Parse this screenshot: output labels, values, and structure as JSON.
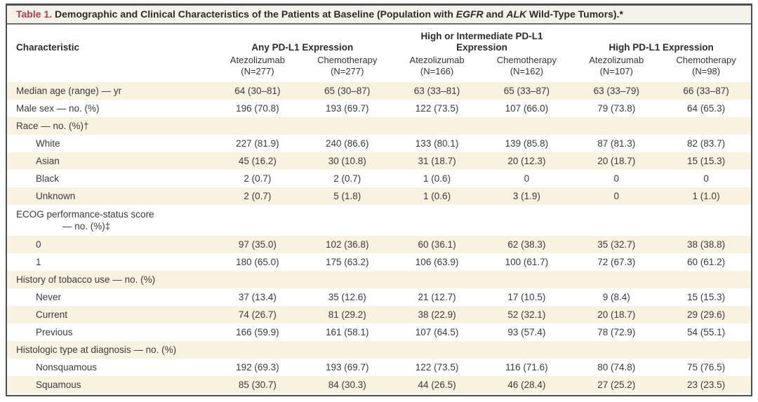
{
  "title": {
    "label": "Table 1.",
    "part1": " Demographic and Clinical Characteristics of the Patients at Baseline (Population with ",
    "gene1": "EGFR",
    "part2": " and ",
    "gene2": "ALK",
    "part3": " Wild-Type Tumors).*"
  },
  "header": {
    "characteristic": "Characteristic",
    "groups": [
      {
        "label": "Any PD-L1 Expression"
      },
      {
        "label": "High or Intermediate PD-L1 Expression"
      },
      {
        "label": "High PD-L1 Expression"
      }
    ],
    "arms": [
      {
        "drug": "Atezolizumab",
        "n": "(N=277)"
      },
      {
        "drug": "Chemotherapy",
        "n": "(N=277)"
      },
      {
        "drug": "Atezolizumab",
        "n": "(N=166)"
      },
      {
        "drug": "Chemotherapy",
        "n": "(N=162)"
      },
      {
        "drug": "Atezolizumab",
        "n": "(N=107)"
      },
      {
        "drug": "Chemotherapy",
        "n": "(N=98)"
      }
    ]
  },
  "rows": [
    {
      "label": "Median age (range) — yr",
      "values": [
        "64 (30–81)",
        "65 (30–87)",
        "63 (33–81)",
        "65 (33–87)",
        "63 (33–79)",
        "66 (33–87)"
      ]
    },
    {
      "label": "Male sex — no. (%)",
      "values": [
        "196 (70.8)",
        "193 (69.7)",
        "122 (73.5)",
        "107 (66.0)",
        "79 (73.8)",
        "64 (65.3)"
      ]
    },
    {
      "label": "Race — no. (%)†",
      "values": [
        "",
        "",
        "",
        "",
        "",
        ""
      ]
    },
    {
      "label": "White",
      "values": [
        "227 (81.9)",
        "240 (86.6)",
        "133 (80.1)",
        "139 (85.8)",
        "87 (81.3)",
        "82 (83.7)"
      ]
    },
    {
      "label": "Asian",
      "values": [
        "45 (16.2)",
        "30 (10.8)",
        "31 (18.7)",
        "20 (12.3)",
        "20 (18.7)",
        "15 (15.3)"
      ]
    },
    {
      "label": "Black",
      "values": [
        "2 (0.7)",
        "2 (0.7)",
        "1 (0.6)",
        "0",
        "0",
        "0"
      ]
    },
    {
      "label": "Unknown",
      "values": [
        "2 (0.7)",
        "5 (1.8)",
        "1 (0.6)",
        "3 (1.9)",
        "0",
        "1 (1.0)"
      ]
    },
    {
      "label": "ECOG performance-status score",
      "label2": "— no. (%)‡",
      "values": [
        "",
        "",
        "",
        "",
        "",
        ""
      ]
    },
    {
      "label": "0",
      "values": [
        "97 (35.0)",
        "102 (36.8)",
        "60 (36.1)",
        "62 (38.3)",
        "35 (32.7)",
        "38 (38.8)"
      ]
    },
    {
      "label": "1",
      "values": [
        "180 (65.0)",
        "175 (63.2)",
        "106 (63.9)",
        "100 (61.7)",
        "72 (67.3)",
        "60 (61.2)"
      ]
    },
    {
      "label": "History of tobacco use — no. (%)",
      "values": [
        "",
        "",
        "",
        "",
        "",
        ""
      ]
    },
    {
      "label": "Never",
      "values": [
        "37 (13.4)",
        "35 (12.6)",
        "21 (12.7)",
        "17 (10.5)",
        "9 (8.4)",
        "15 (15.3)"
      ]
    },
    {
      "label": "Current",
      "values": [
        "74 (26.7)",
        "81 (29.2)",
        "38 (22.9)",
        "52 (32.1)",
        "20 (18.7)",
        "29 (29.6)"
      ]
    },
    {
      "label": "Previous",
      "values": [
        "166 (59.9)",
        "161 (58.1)",
        "107 (64.5)",
        "93 (57.4)",
        "78 (72.9)",
        "54 (55.1)"
      ]
    },
    {
      "label": "Histologic type at diagnosis — no. (%)",
      "values": [
        "",
        "",
        "",
        "",
        "",
        ""
      ]
    },
    {
      "label": "Nonsquamous",
      "values": [
        "192 (69.3)",
        "193 (69.7)",
        "122 (73.5)",
        "116 (71.6)",
        "80 (74.8)",
        "75 (76.5)"
      ]
    },
    {
      "label": "Squamous",
      "values": [
        "85 (30.7)",
        "84 (30.3)",
        "44 (26.5)",
        "46 (28.4)",
        "27 (25.2)",
        "23 (23.5)"
      ]
    }
  ],
  "colors": {
    "accent_red": "#b5394b",
    "row_stripe": "#f9f2e1",
    "titlebar_bg": "#f5f2ea",
    "border": "#4e4e52",
    "text": "#3a3a3c"
  }
}
